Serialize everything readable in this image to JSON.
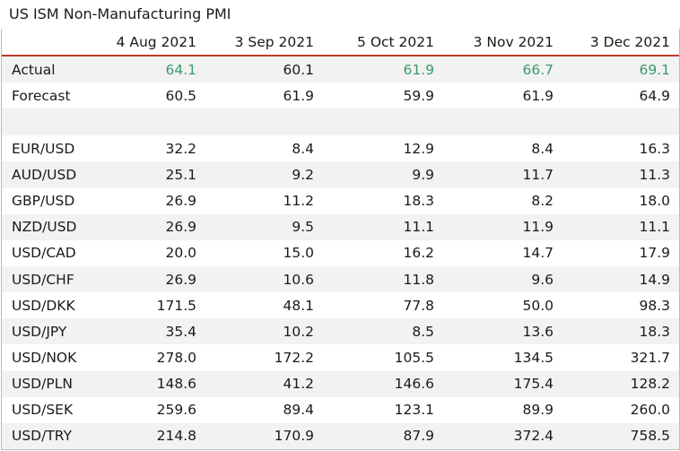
{
  "title": "US ISM Non-Manufacturing PMI",
  "columns": [
    "4 Aug 2021",
    "3 Sep 2021",
    "5 Oct 2021",
    "3 Nov 2021",
    "3 Dec 2021"
  ],
  "rows": [
    {
      "label": "Actual",
      "values": [
        "64.1",
        "60.1",
        "61.9",
        "66.7",
        "69.1"
      ]
    },
    {
      "label": "Forecast",
      "values": [
        "60.5",
        "61.9",
        "59.9",
        "61.9",
        "64.9"
      ]
    },
    {
      "label": "",
      "values": [
        "",
        "",
        "",
        "",
        ""
      ]
    },
    {
      "label": "EUR/USD",
      "values": [
        "32.2",
        "8.4",
        "12.9",
        "8.4",
        "16.3"
      ]
    },
    {
      "label": "AUD/USD",
      "values": [
        "25.1",
        "9.2",
        "9.9",
        "11.7",
        "11.3"
      ]
    },
    {
      "label": "GBP/USD",
      "values": [
        "26.9",
        "11.2",
        "18.3",
        "8.2",
        "18.0"
      ]
    },
    {
      "label": "NZD/USD",
      "values": [
        "26.9",
        "9.5",
        "11.1",
        "11.9",
        "11.1"
      ]
    },
    {
      "label": "USD/CAD",
      "values": [
        "20.0",
        "15.0",
        "16.2",
        "14.7",
        "17.9"
      ]
    },
    {
      "label": "USD/CHF",
      "values": [
        "26.9",
        "10.6",
        "11.8",
        "9.6",
        "14.9"
      ]
    },
    {
      "label": "USD/DKK",
      "values": [
        "171.5",
        "48.1",
        "77.8",
        "50.0",
        "98.3"
      ]
    },
    {
      "label": "USD/JPY",
      "values": [
        "35.4",
        "10.2",
        "8.5",
        "13.6",
        "18.3"
      ]
    },
    {
      "label": "USD/NOK",
      "values": [
        "278.0",
        "172.2",
        "105.5",
        "134.5",
        "321.7"
      ]
    },
    {
      "label": "USD/PLN",
      "values": [
        "148.6",
        "41.2",
        "146.6",
        "175.4",
        "128.2"
      ]
    },
    {
      "label": "USD/SEK",
      "values": [
        "259.6",
        "89.4",
        "123.1",
        "89.9",
        "260.0"
      ]
    },
    {
      "label": "USD/TRY",
      "values": [
        "214.8",
        "170.9",
        "87.9",
        "372.4",
        "758.5"
      ]
    }
  ],
  "colors": {
    "actual_highlight": "#3a9a6c",
    "header_rule": "#c0392b",
    "stripe": "#f2f2f2"
  }
}
